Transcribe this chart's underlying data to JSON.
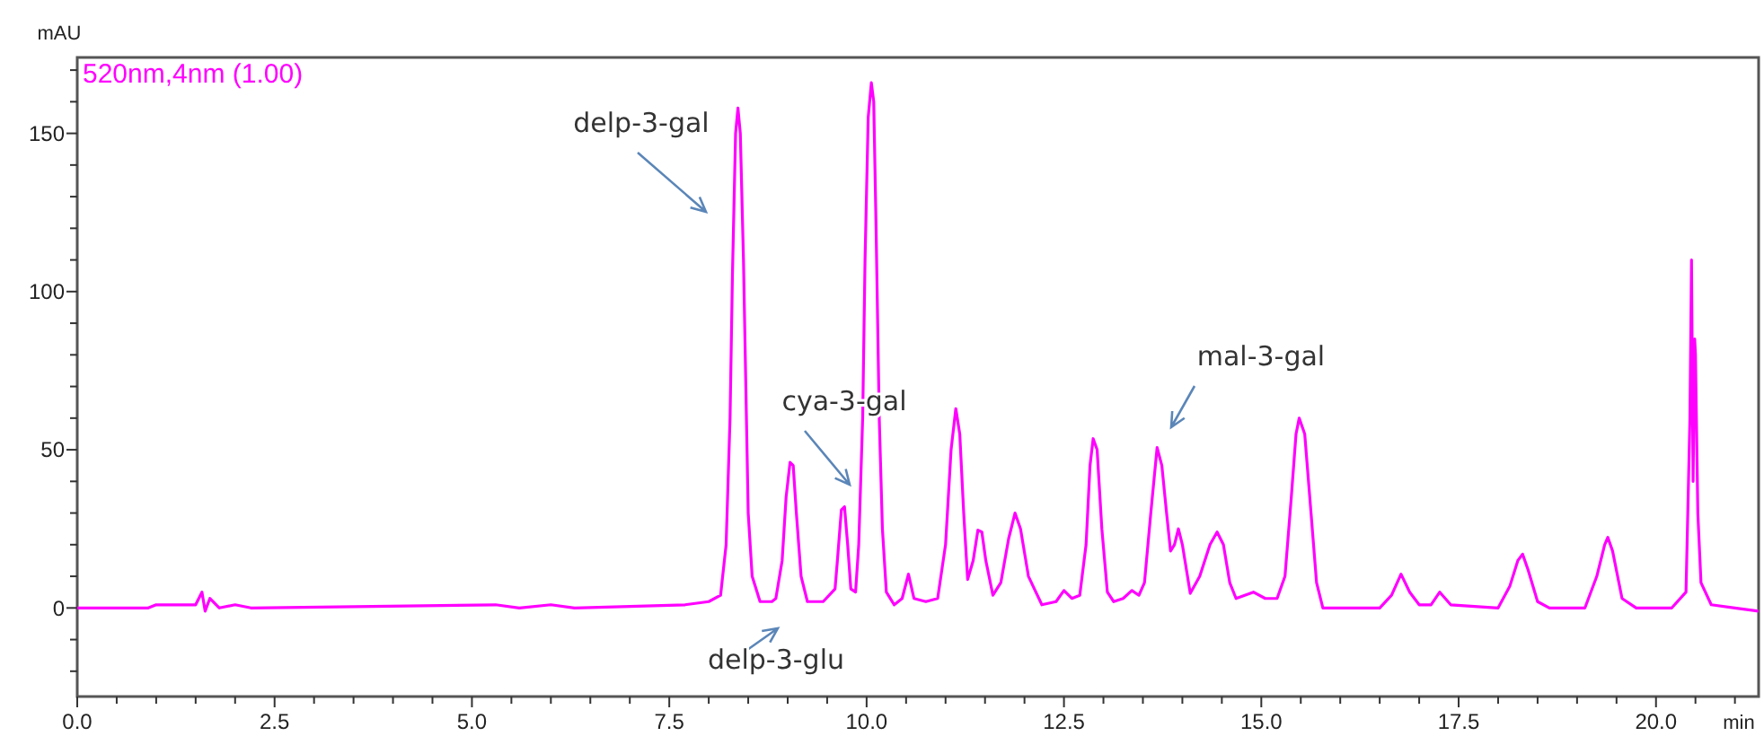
{
  "chart_data": {
    "type": "line",
    "xlabel": "min",
    "ylabel": "mAU",
    "xlim": [
      0,
      21.3
    ],
    "ylim": [
      -28,
      174
    ],
    "xticks": [
      {
        "value": 0,
        "label": "0.0"
      },
      {
        "value": 0.5,
        "label": null
      },
      {
        "value": 1,
        "label": null
      },
      {
        "value": 1.5,
        "label": null
      },
      {
        "value": 2,
        "label": null
      },
      {
        "value": 2.5,
        "label": "2.5"
      },
      {
        "value": 3,
        "label": null
      },
      {
        "value": 3.5,
        "label": null
      },
      {
        "value": 4,
        "label": null
      },
      {
        "value": 4.5,
        "label": null
      },
      {
        "value": 5,
        "label": "5.0"
      },
      {
        "value": 5.5,
        "label": null
      },
      {
        "value": 6,
        "label": null
      },
      {
        "value": 6.5,
        "label": null
      },
      {
        "value": 7,
        "label": null
      },
      {
        "value": 7.5,
        "label": "7.5"
      },
      {
        "value": 8,
        "label": null
      },
      {
        "value": 8.5,
        "label": null
      },
      {
        "value": 9,
        "label": null
      },
      {
        "value": 9.5,
        "label": null
      },
      {
        "value": 10,
        "label": "10.0"
      },
      {
        "value": 10.5,
        "label": null
      },
      {
        "value": 11,
        "label": null
      },
      {
        "value": 11.5,
        "label": null
      },
      {
        "value": 12,
        "label": null
      },
      {
        "value": 12.5,
        "label": "12.5"
      },
      {
        "value": 13,
        "label": null
      },
      {
        "value": 13.5,
        "label": null
      },
      {
        "value": 14,
        "label": null
      },
      {
        "value": 14.5,
        "label": null
      },
      {
        "value": 15,
        "label": "15.0"
      },
      {
        "value": 15.5,
        "label": null
      },
      {
        "value": 16,
        "label": null
      },
      {
        "value": 16.5,
        "label": null
      },
      {
        "value": 17,
        "label": null
      },
      {
        "value": 17.5,
        "label": "17.5"
      },
      {
        "value": 18,
        "label": null
      },
      {
        "value": 18.5,
        "label": null
      },
      {
        "value": 19,
        "label": null
      },
      {
        "value": 19.5,
        "label": null
      },
      {
        "value": 20,
        "label": "20.0"
      },
      {
        "value": 20.5,
        "label": null
      },
      {
        "value": 21,
        "label": null
      }
    ],
    "yticks": [
      {
        "value": -20,
        "label": null
      },
      {
        "value": -10,
        "label": null
      },
      0,
      {
        "value": 10,
        "label": null
      },
      {
        "value": 20,
        "label": null
      },
      {
        "value": 30,
        "label": null
      },
      {
        "value": 40,
        "label": null
      },
      50,
      {
        "value": 60,
        "label": null
      },
      {
        "value": 70,
        "label": null
      },
      {
        "value": 80,
        "label": null
      },
      {
        "value": 90,
        "label": null
      },
      100,
      {
        "value": 110,
        "label": null
      },
      {
        "value": 120,
        "label": null
      },
      {
        "value": 130,
        "label": null
      },
      {
        "value": 140,
        "label": null
      },
      150,
      {
        "value": 160,
        "label": null
      },
      {
        "value": 170,
        "label": null
      }
    ],
    "grid": false,
    "legend": "top left",
    "marker": "none",
    "line_style": "solid",
    "series": [
      {
        "name": "520nm,4nm (1.00)",
        "color": "#ff00ff",
        "x": [
          0,
          0.9,
          1.0,
          1.5,
          1.58,
          1.62,
          1.68,
          1.8,
          2.0,
          2.2,
          5.3,
          5.6,
          6.0,
          6.3,
          7.7,
          8.0,
          8.15,
          8.22,
          8.27,
          8.3,
          8.34,
          8.37,
          8.4,
          8.44,
          8.47,
          8.5,
          8.55,
          8.65,
          8.8,
          8.85,
          8.93,
          8.98,
          9.03,
          9.07,
          9.11,
          9.17,
          9.25,
          9.45,
          9.6,
          9.63,
          9.68,
          9.72,
          9.76,
          9.8,
          9.86,
          9.9,
          9.95,
          9.98,
          10.02,
          10.06,
          10.09,
          10.12,
          10.16,
          10.2,
          10.25,
          10.35,
          10.45,
          10.53,
          10.6,
          10.75,
          10.9,
          11.0,
          11.07,
          11.13,
          11.18,
          11.23,
          11.28,
          11.35,
          11.41,
          11.46,
          11.51,
          11.6,
          11.7,
          11.8,
          11.88,
          11.95,
          12.05,
          12.22,
          12.4,
          12.5,
          12.6,
          12.7,
          12.78,
          12.83,
          12.87,
          12.92,
          12.98,
          13.05,
          13.13,
          13.25,
          13.36,
          13.45,
          13.52,
          13.6,
          13.68,
          13.74,
          13.8,
          13.85,
          13.9,
          13.95,
          14.0,
          14.1,
          14.22,
          14.35,
          14.44,
          14.52,
          14.6,
          14.68,
          14.9,
          15.05,
          15.2,
          15.3,
          15.38,
          15.44,
          15.48,
          15.55,
          15.63,
          15.7,
          15.78,
          16.5,
          16.65,
          16.77,
          16.88,
          17.0,
          17.15,
          17.26,
          17.4,
          18.0,
          18.15,
          18.25,
          18.31,
          18.38,
          18.5,
          18.65,
          19.1,
          19.25,
          19.35,
          19.39,
          19.45,
          19.57,
          19.75,
          20.2,
          20.38,
          20.43,
          20.45,
          20.47,
          20.49,
          20.5,
          20.53,
          20.57,
          20.7,
          21.0,
          21.3
        ],
        "values": [
          0,
          0,
          1,
          1,
          5,
          -1,
          3,
          0,
          1,
          0,
          1,
          0,
          1,
          0,
          1,
          2,
          4,
          20,
          60,
          105,
          150,
          158,
          150,
          110,
          70,
          30,
          10,
          2,
          2,
          3,
          15,
          35,
          46,
          45,
          30,
          10,
          2,
          2,
          6,
          15,
          31,
          32,
          20,
          6,
          5,
          20,
          60,
          110,
          155,
          166,
          160,
          120,
          60,
          25,
          5,
          1,
          3,
          10.7,
          3,
          2,
          3,
          20,
          50,
          63,
          55,
          30,
          9,
          15,
          24.6,
          24,
          15,
          4,
          8,
          22,
          30,
          25,
          10,
          1,
          2,
          5.5,
          3,
          4,
          20,
          45,
          53.5,
          50,
          25,
          5,
          2,
          3,
          5.5,
          4,
          8,
          30,
          50.7,
          45,
          30,
          18,
          20,
          25,
          20,
          4.6,
          10,
          20,
          24,
          20,
          8,
          3,
          5,
          3,
          3,
          10,
          35,
          55,
          60,
          55,
          30,
          8,
          0,
          0,
          4,
          10.7,
          5,
          1,
          1,
          5,
          1,
          0,
          7,
          15,
          17,
          12,
          2,
          0,
          0,
          10,
          20,
          22.3,
          18,
          3,
          0,
          0,
          5,
          60,
          110,
          40,
          85,
          80,
          30,
          8,
          1,
          0,
          -1
        ]
      }
    ],
    "annotations": [
      "delp-3-gal",
      "cya-3-gal",
      "mal-3-gal",
      "delp-3-glu"
    ]
  }
}
